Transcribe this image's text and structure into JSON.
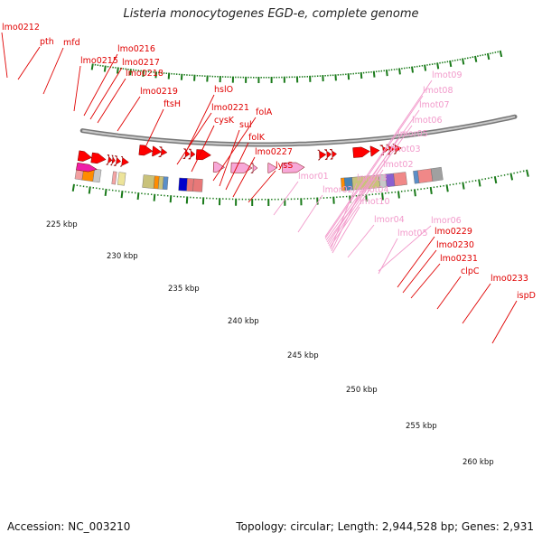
{
  "title": "Listeria monocytogenes EGD-e, complete genome",
  "footer": {
    "accession": "Accession: NC_003210",
    "topology": "Topology: circular; Length: 2,944,528 bp; Genes: 2,931"
  },
  "colors": {
    "gene_label": "#e00000",
    "rna_label": "#f29acb",
    "cds_arrow": "#ff0000",
    "rna_arrow": "#f7a8d8",
    "backbone": "#999999",
    "tick_mark": "#1a7a1a"
  },
  "scale_labels": [
    "225 kbp",
    "230 kbp",
    "235 kbp",
    "240 kbp",
    "245 kbp",
    "250 kbp",
    "255 kbp",
    "260 kbp"
  ],
  "gene_labels": [
    {
      "text": "lmo0212",
      "type": "gene"
    },
    {
      "text": "pth",
      "type": "gene"
    },
    {
      "text": "mfd",
      "type": "gene"
    },
    {
      "text": "lmo0216",
      "type": "gene"
    },
    {
      "text": "lmo0215",
      "type": "gene"
    },
    {
      "text": "lmo0217",
      "type": "gene"
    },
    {
      "text": "lmo0218",
      "type": "gene"
    },
    {
      "text": "lmo0219",
      "type": "gene"
    },
    {
      "text": "hslO",
      "type": "gene"
    },
    {
      "text": "ftsH",
      "type": "gene"
    },
    {
      "text": "lmo0221",
      "type": "gene"
    },
    {
      "text": "cysK",
      "type": "gene"
    },
    {
      "text": "folA",
      "type": "gene"
    },
    {
      "text": "sul",
      "type": "gene"
    },
    {
      "text": "folK",
      "type": "gene"
    },
    {
      "text": "lmo0227",
      "type": "gene"
    },
    {
      "text": "lysS",
      "type": "gene"
    },
    {
      "text": "lmor01",
      "type": "rna"
    },
    {
      "text": "lmor02",
      "type": "rna"
    },
    {
      "text": "lmot09",
      "type": "rna"
    },
    {
      "text": "lmot08",
      "type": "rna"
    },
    {
      "text": "lmot07",
      "type": "rna"
    },
    {
      "text": "lmot06",
      "type": "rna"
    },
    {
      "text": "lmor05",
      "type": "rna"
    },
    {
      "text": "lmot03",
      "type": "rna"
    },
    {
      "text": "lmot02",
      "type": "rna"
    },
    {
      "text": "lmor03",
      "type": "rna"
    },
    {
      "text": "lmot04",
      "type": "rna"
    },
    {
      "text": "lmot10",
      "type": "rna"
    },
    {
      "text": "lmor04",
      "type": "rna"
    },
    {
      "text": "lmor06",
      "type": "rna"
    },
    {
      "text": "lmot05",
      "type": "rna"
    },
    {
      "text": "lmo0229",
      "type": "gene"
    },
    {
      "text": "lmo0230",
      "type": "gene"
    },
    {
      "text": "lmo0231",
      "type": "gene"
    },
    {
      "text": "clpC",
      "type": "gene"
    },
    {
      "text": "lmo0233",
      "type": "gene"
    },
    {
      "text": "ispD",
      "type": "gene"
    }
  ]
}
